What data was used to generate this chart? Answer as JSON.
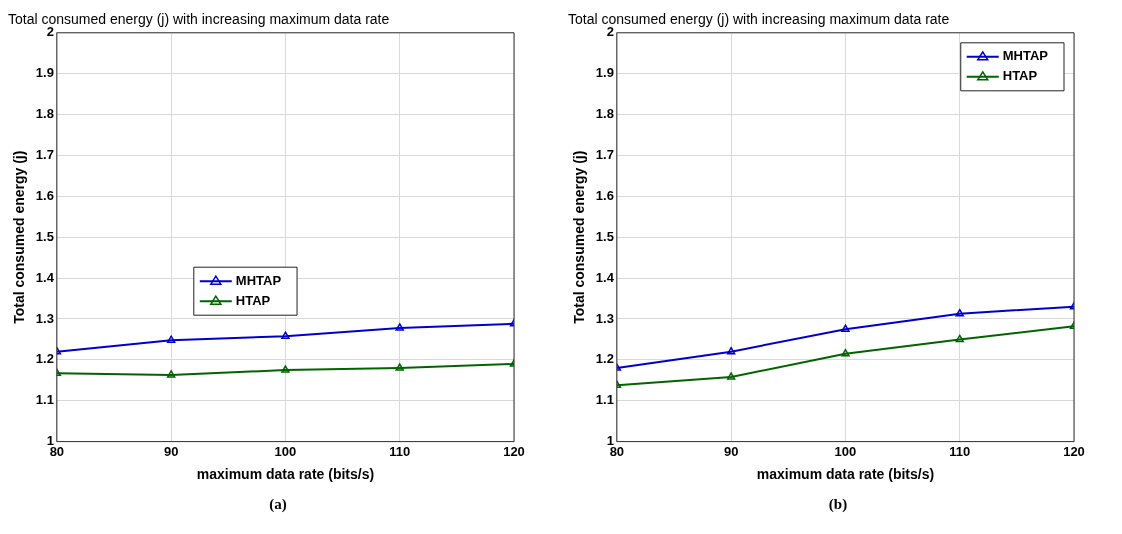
{
  "chart_data": [
    {
      "type": "line",
      "title": "Total consumed energy (j) with increasing maximum data rate",
      "xlabel": "maximum data rate (bits/s)",
      "ylabel": "Total consumed energy (j)",
      "x": [
        80,
        90,
        100,
        110,
        120
      ],
      "series": [
        {
          "name": "MHTAP",
          "color": "#0000cc",
          "values": [
            1.22,
            1.248,
            1.258,
            1.278,
            1.288
          ]
        },
        {
          "name": "HTAP",
          "color": "#006400",
          "values": [
            1.167,
            1.163,
            1.175,
            1.18,
            1.19
          ]
        }
      ],
      "xlim": [
        80,
        120
      ],
      "xticks": [
        80,
        90,
        100,
        110,
        120
      ],
      "ylim": [
        1,
        2
      ],
      "yticks": [
        1,
        1.1,
        1.2,
        1.3,
        1.4,
        1.5,
        1.6,
        1.7,
        1.8,
        1.9,
        2
      ],
      "grid": true,
      "legend": "center",
      "marker": "triangle",
      "line_style": "solid",
      "annotations": [
        "(a)"
      ]
    },
    {
      "type": "line",
      "title": "Total consumed energy (j) with increasing maximum data rate",
      "xlabel": "maximum data rate (bits/s)",
      "ylabel": "Total consumed energy (j)",
      "x": [
        80,
        90,
        100,
        110,
        120
      ],
      "series": [
        {
          "name": "MHTAP",
          "color": "#0000cc",
          "values": [
            1.18,
            1.22,
            1.275,
            1.313,
            1.33
          ]
        },
        {
          "name": "HTAP",
          "color": "#006400",
          "values": [
            1.138,
            1.158,
            1.215,
            1.25,
            1.282
          ]
        }
      ],
      "xlim": [
        80,
        120
      ],
      "xticks": [
        80,
        90,
        100,
        110,
        120
      ],
      "ylim": [
        1,
        2
      ],
      "yticks": [
        1,
        1.1,
        1.2,
        1.3,
        1.4,
        1.5,
        1.6,
        1.7,
        1.8,
        1.9,
        2
      ],
      "grid": true,
      "legend": "top right",
      "marker": "triangle",
      "line_style": "solid",
      "annotations": [
        "(b)"
      ]
    }
  ]
}
